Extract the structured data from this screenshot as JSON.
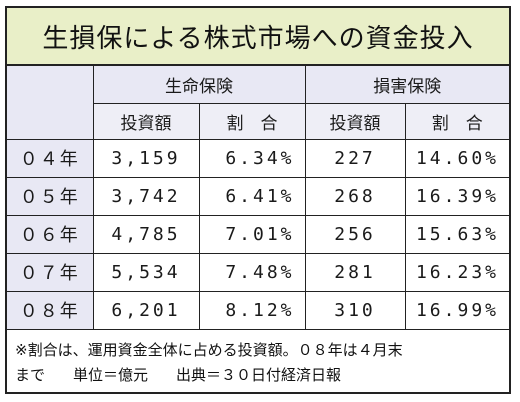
{
  "title": "生損保による株式市場への資金投入",
  "groups": {
    "life": "生命保険",
    "nonlife": "損害保険"
  },
  "subheaders": {
    "amount": "投資額",
    "ratio": "割　合"
  },
  "rows": [
    {
      "year": "０４年",
      "life_amount": "3,159",
      "life_ratio": "6.34%",
      "nonlife_amount": "227",
      "nonlife_ratio": "14.60%"
    },
    {
      "year": "０５年",
      "life_amount": "3,742",
      "life_ratio": "6.41%",
      "nonlife_amount": "268",
      "nonlife_ratio": "16.39%"
    },
    {
      "year": "０６年",
      "life_amount": "4,785",
      "life_ratio": "7.01%",
      "nonlife_amount": "256",
      "nonlife_ratio": "15.63%"
    },
    {
      "year": "０７年",
      "life_amount": "5,534",
      "life_ratio": "7.48%",
      "nonlife_amount": "281",
      "nonlife_ratio": "16.23%"
    },
    {
      "year": "０８年",
      "life_amount": "6,201",
      "life_ratio": "8.12%",
      "nonlife_amount": "310",
      "nonlife_ratio": "16.99%"
    }
  ],
  "note": {
    "line1": "※割合は、運用資金全体に占める投資額。０８年は４月末",
    "line2_a": "まで",
    "line2_b": "単位＝億元",
    "line2_c": "出典＝３０日付経済日報"
  }
}
